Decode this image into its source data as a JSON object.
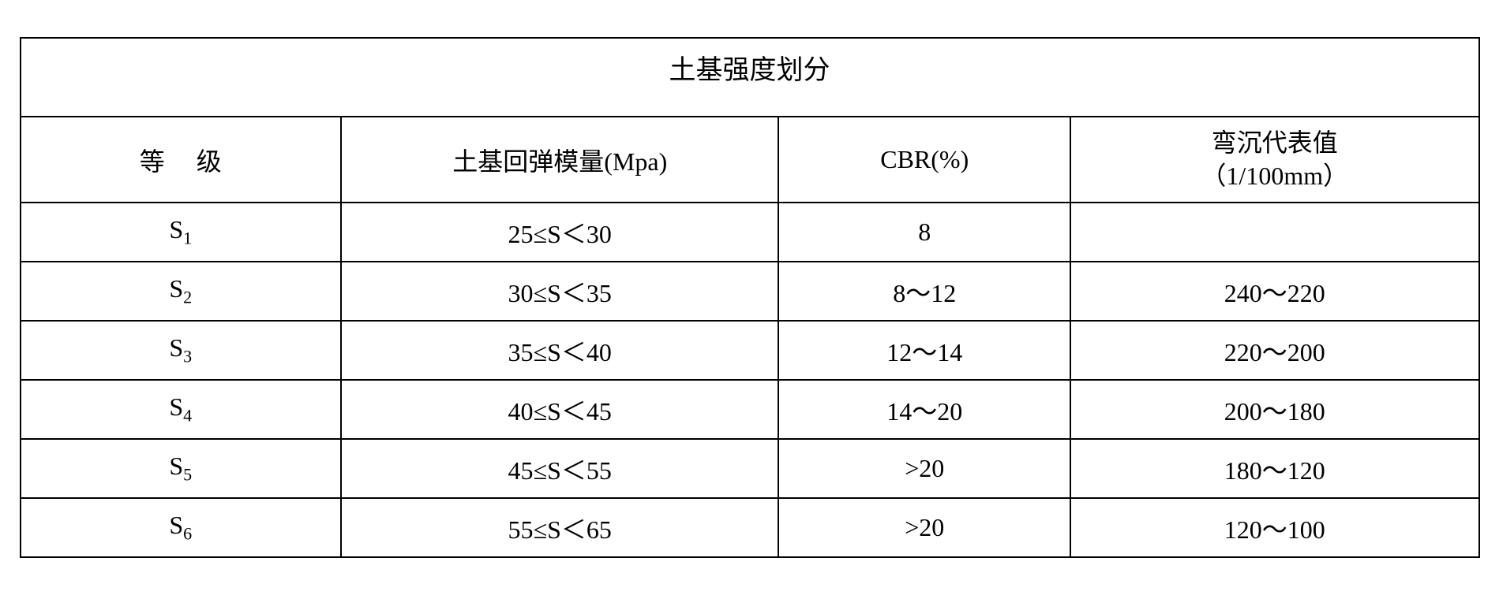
{
  "table": {
    "title": "土基强度划分",
    "columns": {
      "level": "等级",
      "modulus": "土基回弹模量(Mpa)",
      "cbr": "CBR(%)",
      "deflection_line1": "弯沉代表值",
      "deflection_line2": "（1/100mm）"
    },
    "rows": [
      {
        "level_base": "S",
        "level_sub": "1",
        "modulus": "25≤S＜30",
        "cbr": "8",
        "deflection": ""
      },
      {
        "level_base": "S",
        "level_sub": "2",
        "modulus": "30≤S＜35",
        "cbr": "8～12",
        "deflection": "240～220"
      },
      {
        "level_base": "S",
        "level_sub": "3",
        "modulus": "35≤S＜40",
        "cbr": "12～14",
        "deflection": "220～200"
      },
      {
        "level_base": "S",
        "level_sub": "4",
        "modulus": "40≤S＜45",
        "cbr": "14～20",
        "deflection": "200～180"
      },
      {
        "level_base": "S",
        "level_sub": "5",
        "modulus": "45≤S＜55",
        "cbr": ">20",
        "deflection": "180～120"
      },
      {
        "level_base": "S",
        "level_sub": "6",
        "modulus": "55≤S＜65",
        "cbr": ">20",
        "deflection": "120～100"
      }
    ],
    "styling": {
      "border_color": "#000000",
      "border_width": 2,
      "background_color": "#ffffff",
      "text_color": "#000000",
      "title_fontsize": 34,
      "header_fontsize": 32,
      "body_fontsize": 32,
      "sub_fontsize": 22,
      "font_family": "SimSun",
      "column_widths_pct": [
        22,
        30,
        20,
        28
      ],
      "title_row_height": 100,
      "header_row_height": 100,
      "data_row_height": 75
    }
  }
}
